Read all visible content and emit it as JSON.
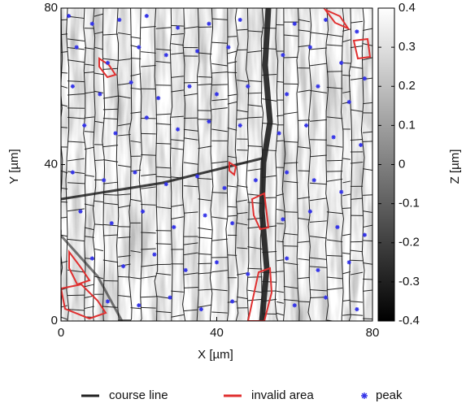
{
  "chart_data": {
    "type": "scatter",
    "xlabel": "X [µm]",
    "ylabel": "Y [µm]",
    "xlim": [
      0,
      80
    ],
    "ylim": [
      0,
      80
    ],
    "xticks": [
      0,
      40,
      80
    ],
    "yticks": [
      0,
      40,
      80
    ],
    "colorbar": {
      "label": "Z [µm]",
      "lim": [
        -0.4,
        0.4
      ],
      "ticks": [
        0.4,
        0.3,
        0.2,
        0.1,
        0,
        -0.1,
        -0.2,
        -0.3,
        -0.4
      ],
      "colormap": [
        "#000000",
        "#ffffff"
      ]
    },
    "series": [
      {
        "name": "course line",
        "color": "#222222"
      },
      {
        "name": "invalid area",
        "color": "#e03030"
      },
      {
        "name": "peak",
        "color": "#3434e8",
        "x": [
          2,
          8,
          15,
          22,
          30,
          38,
          46,
          60,
          68,
          76,
          4,
          12,
          20,
          27,
          35,
          43,
          57,
          64,
          72,
          78,
          3,
          10,
          18,
          25,
          33,
          40,
          48,
          58,
          66,
          74,
          6,
          14,
          22,
          30,
          38,
          46,
          56,
          63,
          70,
          77,
          3,
          11,
          19,
          27,
          35,
          42,
          50,
          58,
          65,
          72,
          5,
          13,
          21,
          29,
          37,
          44,
          57,
          64,
          71,
          78,
          8,
          16,
          24,
          32,
          40,
          48,
          58,
          66,
          74,
          12,
          20,
          28,
          36,
          44,
          60,
          68,
          76
        ],
        "y": [
          78,
          76,
          77,
          78,
          75,
          76,
          77,
          76,
          77,
          74,
          70,
          66,
          70,
          68,
          69,
          70,
          68,
          70,
          66,
          62,
          60,
          58,
          61,
          57,
          60,
          58,
          60,
          58,
          60,
          56,
          50,
          48,
          52,
          49,
          51,
          50,
          48,
          50,
          47,
          45,
          38,
          36,
          38,
          35,
          37,
          34,
          36,
          38,
          36,
          33,
          28,
          25,
          28,
          24,
          27,
          25,
          26,
          28,
          24,
          22,
          16,
          14,
          17,
          13,
          15,
          12,
          16,
          13,
          15,
          5,
          4,
          6,
          3,
          5,
          4,
          6,
          3
        ]
      }
    ]
  }
}
